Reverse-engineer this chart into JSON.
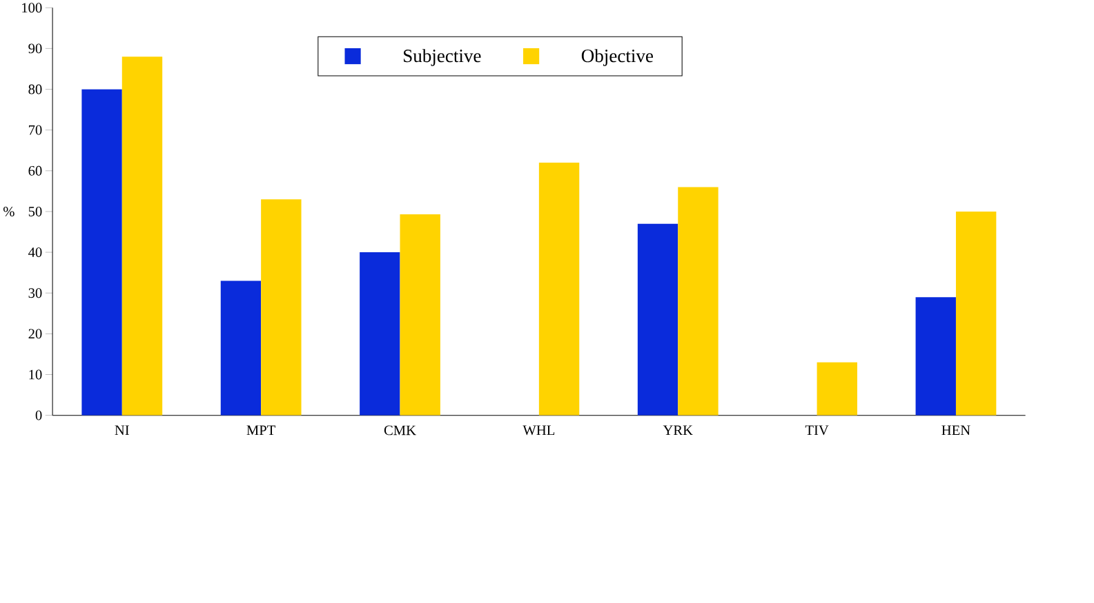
{
  "chart_data": {
    "type": "bar",
    "ylabel": "%",
    "categories": [
      "NI",
      "MPT",
      "CMK",
      "WHL",
      "YRK",
      "TIV",
      "HEN"
    ],
    "series": [
      {
        "name": "Subjective",
        "color": "#0a2bdb",
        "values": [
          80,
          33,
          40,
          null,
          47,
          null,
          29
        ]
      },
      {
        "name": "Objective",
        "color": "#ffd300",
        "values": [
          88,
          53,
          49.3,
          62,
          56,
          13,
          50
        ]
      }
    ],
    "ylim": [
      0,
      100
    ],
    "yticks": [
      0,
      10,
      20,
      30,
      40,
      50,
      60,
      70,
      80,
      90,
      100
    ],
    "legend": "top"
  }
}
